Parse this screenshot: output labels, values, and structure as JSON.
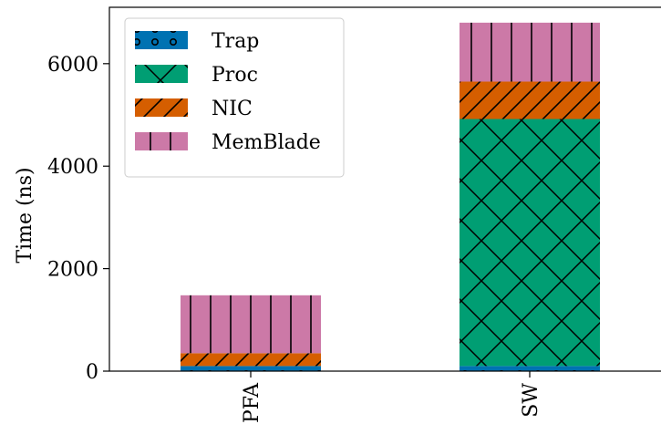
{
  "chart_data": {
    "type": "bar",
    "stacked": true,
    "categories": [
      "PFA",
      "SW"
    ],
    "series": [
      {
        "name": "Trap",
        "values": [
          100,
          100
        ],
        "color": "#0072B2",
        "hatch": "circles"
      },
      {
        "name": "Proc",
        "values": [
          0,
          4820
        ],
        "color": "#009E73",
        "hatch": "crosshatch"
      },
      {
        "name": "NIC",
        "values": [
          250,
          730
        ],
        "color": "#D55E00",
        "hatch": "diagonal"
      },
      {
        "name": "MemBlade",
        "values": [
          1130,
          1150
        ],
        "color": "#CC79A7",
        "hatch": "vertical"
      }
    ],
    "xlabel": "",
    "ylabel": "Time (ns)",
    "ylim": [
      0,
      7100
    ],
    "yticks": [
      0,
      2000,
      4000,
      6000
    ],
    "legend": "top-left",
    "grid": false
  }
}
